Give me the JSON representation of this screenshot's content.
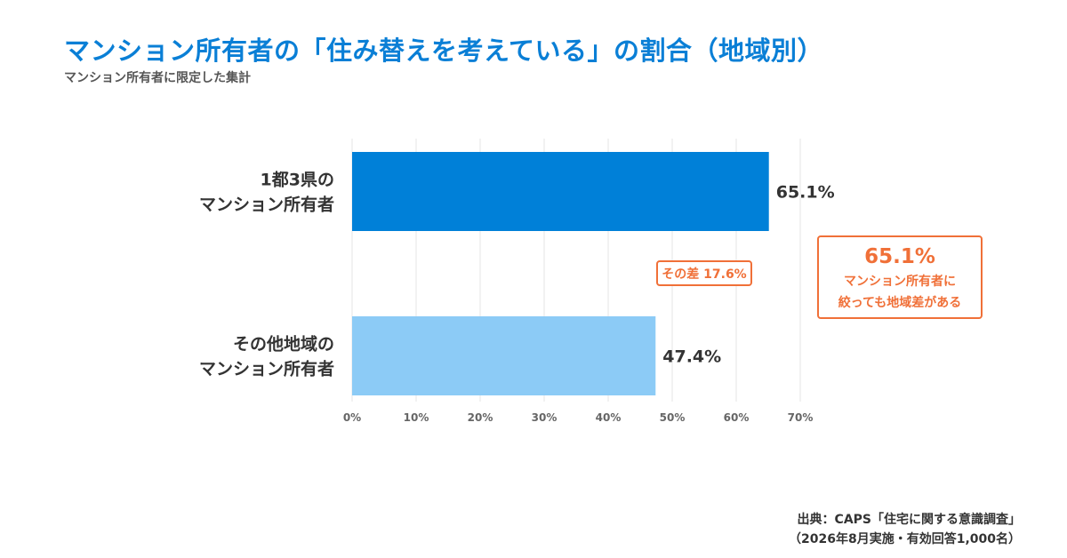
{
  "title": "マンション所有者の「住み替えを考えている」の割合（地域別）",
  "subtitle": "マンション所有者に限定した集計",
  "chart_data": {
    "type": "bar",
    "orientation": "horizontal",
    "categories": [
      [
        "1都3県の",
        "マンション所有者"
      ],
      [
        "その他地域の",
        "マンション所有者"
      ]
    ],
    "values": [
      65.1,
      47.4
    ],
    "value_labels": [
      "65.1%",
      "47.4%"
    ],
    "bar_colors": [
      "#0080d8",
      "#8ccbf6"
    ],
    "xlim": [
      0,
      70
    ],
    "xticks": [
      0,
      10,
      20,
      30,
      40,
      50,
      60,
      70
    ],
    "xtick_labels": [
      "0%",
      "10%",
      "20%",
      "30%",
      "40%",
      "50%",
      "60%",
      "70%"
    ],
    "grid": true,
    "annotation_diff": "その差 17.6%",
    "accent_color": "#f07038"
  },
  "callout": {
    "value": "65.1%",
    "line1": "マンション所有者に",
    "line2": "絞っても地域差がある"
  },
  "source": {
    "line1": "出典：CAPS「住宅に関する意識調査」",
    "line2": "（2026年8月実施・有効回答1,000名）"
  }
}
